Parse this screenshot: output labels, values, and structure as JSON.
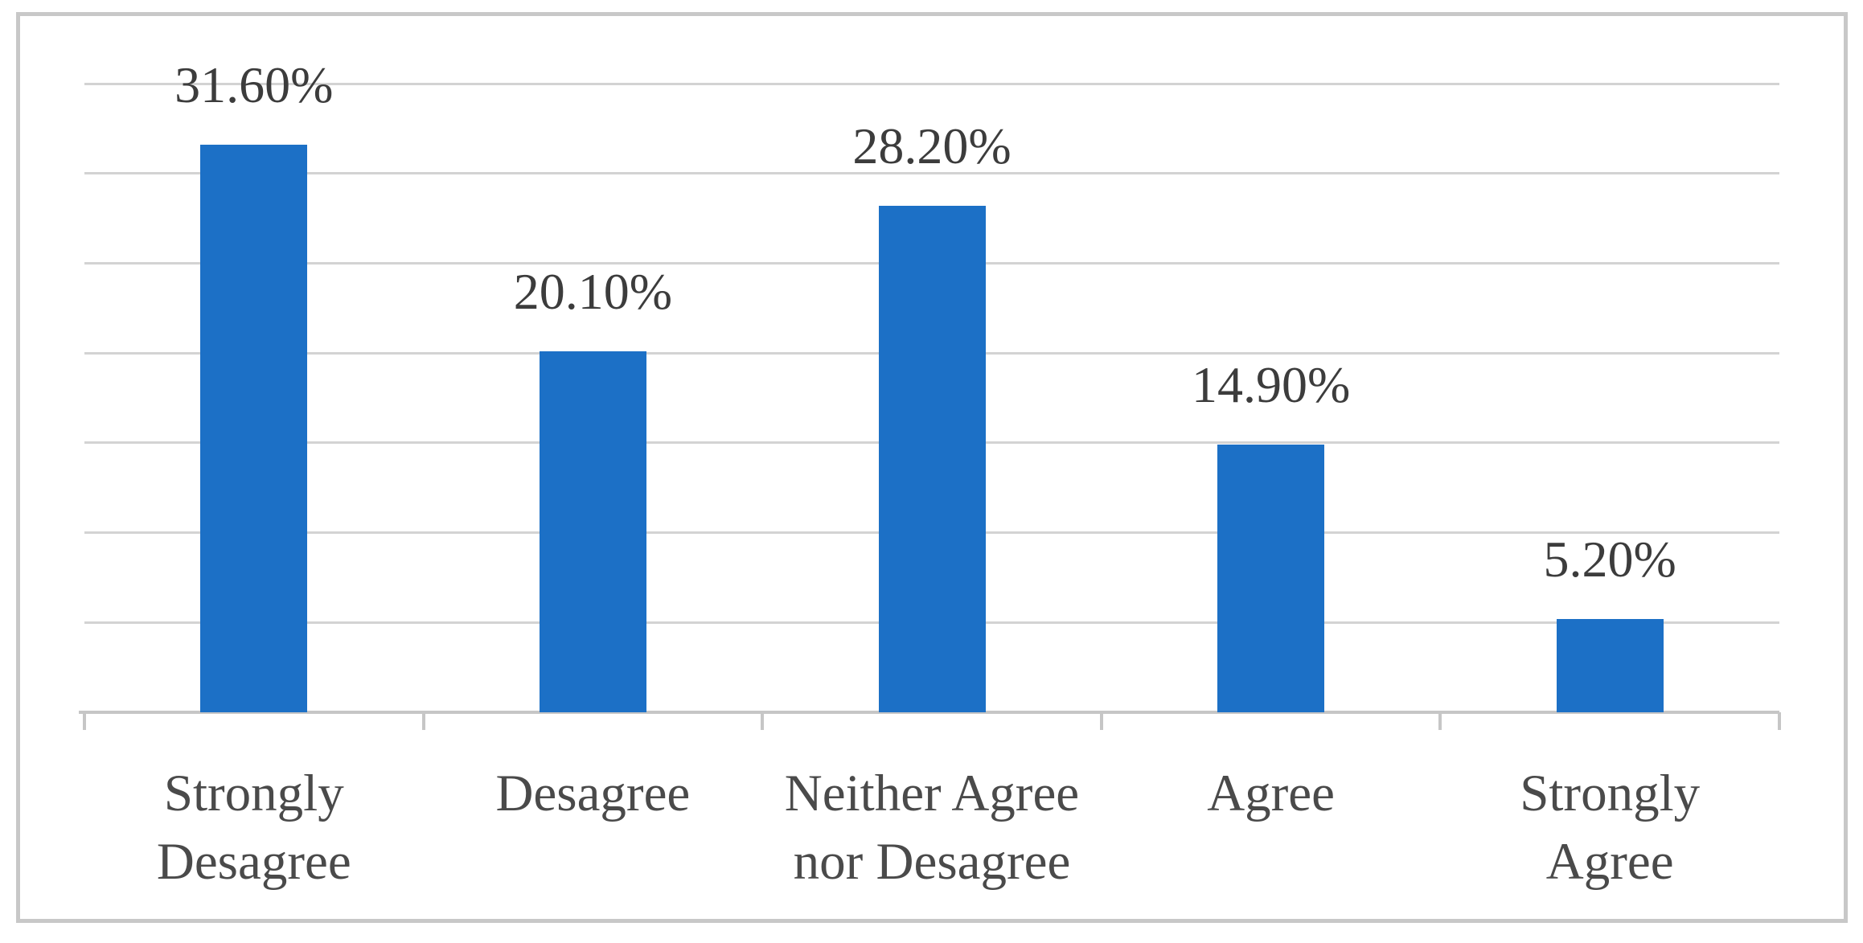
{
  "figure": {
    "background": "#FFFFFF",
    "border_color": "#C8C8C8"
  },
  "chart_data": {
    "type": "bar",
    "title": "",
    "xlabel": "",
    "ylabel": "",
    "categories": [
      "Strongly\nDesagree",
      "Desagree",
      "Neither Agree\nnor Desagree",
      "Agree",
      "Strongly\nAgree"
    ],
    "values": [
      31.6,
      20.1,
      28.2,
      14.9,
      5.2
    ],
    "value_labels": [
      "31.60%",
      "20.10%",
      "28.20%",
      "14.90%",
      "5.20%"
    ],
    "ylim": [
      0,
      35
    ],
    "gridline_step": 5,
    "grid": "horizontal-only",
    "legend": "none",
    "colors": {
      "bar": "#1C70C6",
      "gridline": "#D3D3D3",
      "axis": "#C6C6C6",
      "value_text": "#3C3C3C",
      "category_text": "#4A4A4A"
    }
  }
}
